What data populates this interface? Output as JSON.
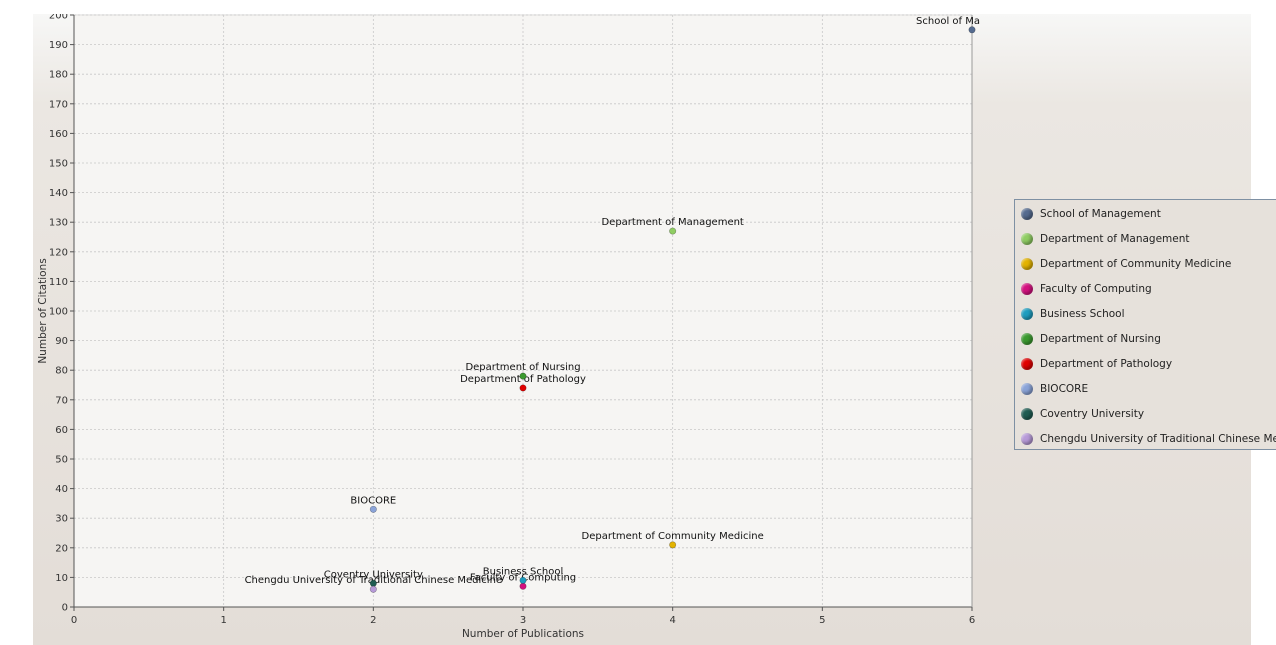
{
  "chart_data": {
    "type": "scatter",
    "title": "",
    "xlabel": "Number of Publications",
    "ylabel": "Number of Citations",
    "xlim": [
      0,
      6
    ],
    "ylim": [
      0,
      200
    ],
    "x_ticks": [
      0,
      1,
      2,
      3,
      4,
      5,
      6
    ],
    "y_ticks": [
      0,
      10,
      20,
      30,
      40,
      50,
      60,
      70,
      80,
      90,
      100,
      110,
      120,
      130,
      140,
      150,
      160,
      170,
      180,
      190,
      200
    ],
    "grid": true,
    "legend_position": "right",
    "series": [
      {
        "name": "School of Management",
        "color": "#556b8f",
        "point_label": "School of Ma",
        "x": 6,
        "y": 195
      },
      {
        "name": "Department of Management",
        "color": "#8fcd62",
        "point_label": "Department of Management",
        "x": 4,
        "y": 127
      },
      {
        "name": "Department of Community Medicine",
        "color": "#e3b300",
        "point_label": "Department of Community Medicine",
        "x": 4,
        "y": 21
      },
      {
        "name": "Faculty of Computing",
        "color": "#d4117f",
        "point_label": "Faculty of Computing",
        "x": 3,
        "y": 7
      },
      {
        "name": "Business School",
        "color": "#1e9dbf",
        "point_label": "Business School",
        "x": 3,
        "y": 9
      },
      {
        "name": "Department of Nursing",
        "color": "#3b9a2f",
        "point_label": "Department of Nursing",
        "x": 3,
        "y": 78
      },
      {
        "name": "Department of Pathology",
        "color": "#e00000",
        "point_label": "Department of Pathology",
        "x": 3,
        "y": 74
      },
      {
        "name": "BIOCORE",
        "color": "#8aa3d8",
        "point_label": "BIOCORE",
        "x": 2,
        "y": 33
      },
      {
        "name": "Coventry University",
        "color": "#1f5c52",
        "point_label": "Coventry University",
        "x": 2,
        "y": 8
      },
      {
        "name": "Chengdu University of Traditional Chinese Medicine",
        "color": "#b79ad8",
        "point_label": "Chengdu University of Traditional Chinese Medicine",
        "x": 2,
        "y": 6
      }
    ]
  }
}
